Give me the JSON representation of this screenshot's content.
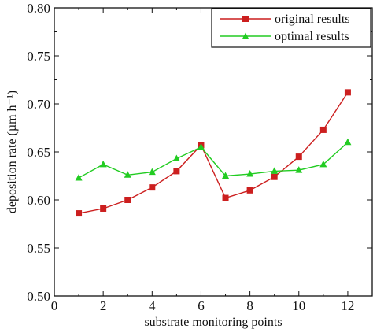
{
  "chart_data": {
    "type": "line",
    "xlabel": "substrate monitoring points",
    "ylabel": "deposition rate (µm h⁻¹)",
    "xlim": [
      0,
      13
    ],
    "ylim": [
      0.5,
      0.8
    ],
    "x_ticks": [
      "0",
      "2",
      "4",
      "6",
      "8",
      "10",
      "12"
    ],
    "y_ticks": [
      "0.50",
      "0.55",
      "0.60",
      "0.65",
      "0.70",
      "0.75",
      "0.80"
    ],
    "grid": false,
    "legend_position": "top-right",
    "x": [
      1,
      2,
      3,
      4,
      5,
      6,
      7,
      8,
      9,
      10,
      11,
      12
    ],
    "series": [
      {
        "name": "original results",
        "color": "#cc1f1f",
        "marker": "square",
        "values": [
          0.586,
          0.591,
          0.6,
          0.613,
          0.63,
          0.657,
          0.602,
          0.61,
          0.624,
          0.645,
          0.673,
          0.712
        ]
      },
      {
        "name": "optimal results",
        "color": "#22cc22",
        "marker": "triangle",
        "values": [
          0.623,
          0.637,
          0.626,
          0.629,
          0.643,
          0.655,
          0.625,
          0.627,
          0.63,
          0.631,
          0.637,
          0.66
        ]
      }
    ]
  }
}
